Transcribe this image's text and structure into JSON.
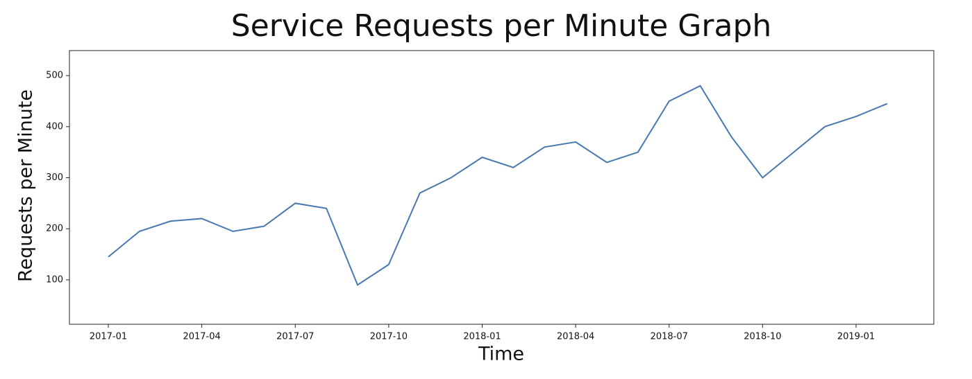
{
  "chart_data": {
    "type": "line",
    "title": "Service Requests per Minute Graph",
    "x_label": "Time",
    "y_label": "Requests per Minute",
    "x": [
      "2017-01",
      "2017-02",
      "2017-03",
      "2017-04",
      "2017-05",
      "2017-06",
      "2017-07",
      "2017-08",
      "2017-09",
      "2017-10",
      "2017-11",
      "2017-12",
      "2018-01",
      "2018-02",
      "2018-03",
      "2018-04",
      "2018-05",
      "2018-06",
      "2018-07",
      "2018-08",
      "2018-09",
      "2018-10",
      "2018-11",
      "2018-12",
      "2019-01",
      "2019-02"
    ],
    "series": [
      {
        "name": "Requests",
        "color": "#4878b0",
        "values": [
          145,
          195,
          215,
          220,
          195,
          205,
          250,
          240,
          90,
          130,
          270,
          300,
          340,
          320,
          360,
          370,
          330,
          350,
          450,
          480,
          380,
          300,
          350,
          400,
          420,
          445
        ]
      }
    ],
    "ylim": [
      13,
      549
    ],
    "yticks": [
      100,
      200,
      300,
      400,
      500
    ],
    "xticks": [
      "2017-01",
      "2017-04",
      "2017-07",
      "2017-10",
      "2018-01",
      "2018-04",
      "2018-07",
      "2018-10",
      "2019-01"
    ]
  }
}
